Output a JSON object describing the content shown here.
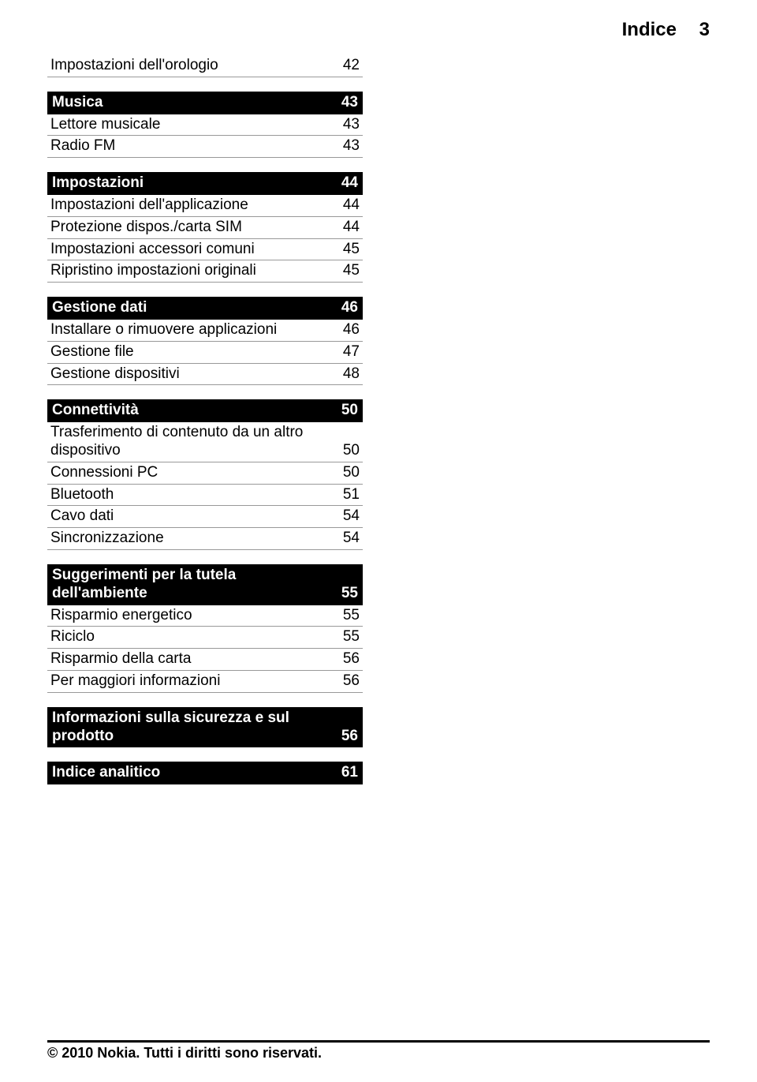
{
  "header": {
    "title": "Indice",
    "page": "3"
  },
  "rows": [
    {
      "type": "item",
      "label": "Impostazioni dell'orologio",
      "num": "42"
    },
    {
      "type": "gap"
    },
    {
      "type": "section",
      "label": "Musica",
      "num": "43"
    },
    {
      "type": "item",
      "label": "Lettore musicale",
      "num": "43"
    },
    {
      "type": "item",
      "label": "Radio FM",
      "num": "43"
    },
    {
      "type": "gap"
    },
    {
      "type": "section",
      "label": "Impostazioni",
      "num": "44"
    },
    {
      "type": "item",
      "label": "Impostazioni dell'applicazione",
      "num": "44"
    },
    {
      "type": "item",
      "label": "Protezione dispos./carta SIM",
      "num": "44"
    },
    {
      "type": "item",
      "label": "Impostazioni accessori comuni",
      "num": "45"
    },
    {
      "type": "item",
      "label": "Ripristino impostazioni originali",
      "num": "45"
    },
    {
      "type": "gap"
    },
    {
      "type": "section",
      "label": "Gestione dati",
      "num": "46"
    },
    {
      "type": "item",
      "label": "Installare o rimuovere applicazioni",
      "num": "46"
    },
    {
      "type": "item",
      "label": "Gestione file",
      "num": "47"
    },
    {
      "type": "item",
      "label": "Gestione dispositivi",
      "num": "48"
    },
    {
      "type": "gap"
    },
    {
      "type": "section",
      "label": "Connettività",
      "num": "50"
    },
    {
      "type": "item",
      "label": "Trasferimento di contenuto da un altro dispositivo",
      "num": "50"
    },
    {
      "type": "item",
      "label": "Connessioni PC",
      "num": "50"
    },
    {
      "type": "item",
      "label": "Bluetooth",
      "num": "51"
    },
    {
      "type": "item",
      "label": "Cavo dati",
      "num": "54"
    },
    {
      "type": "item",
      "label": "Sincronizzazione",
      "num": "54"
    },
    {
      "type": "gap"
    },
    {
      "type": "section",
      "label": "Suggerimenti per la tutela dell'ambiente",
      "num": "55"
    },
    {
      "type": "item",
      "label": "Risparmio energetico",
      "num": "55"
    },
    {
      "type": "item",
      "label": "Riciclo",
      "num": "55"
    },
    {
      "type": "item",
      "label": "Risparmio della carta",
      "num": "56"
    },
    {
      "type": "item",
      "label": "Per maggiori informazioni",
      "num": "56"
    },
    {
      "type": "gap"
    },
    {
      "type": "section",
      "label": "Informazioni sulla sicurezza e sul prodotto",
      "num": "56"
    },
    {
      "type": "gap"
    },
    {
      "type": "section",
      "label": "Indice analitico",
      "num": "61"
    }
  ],
  "footer": "© 2010 Nokia. Tutti i diritti sono riservati."
}
